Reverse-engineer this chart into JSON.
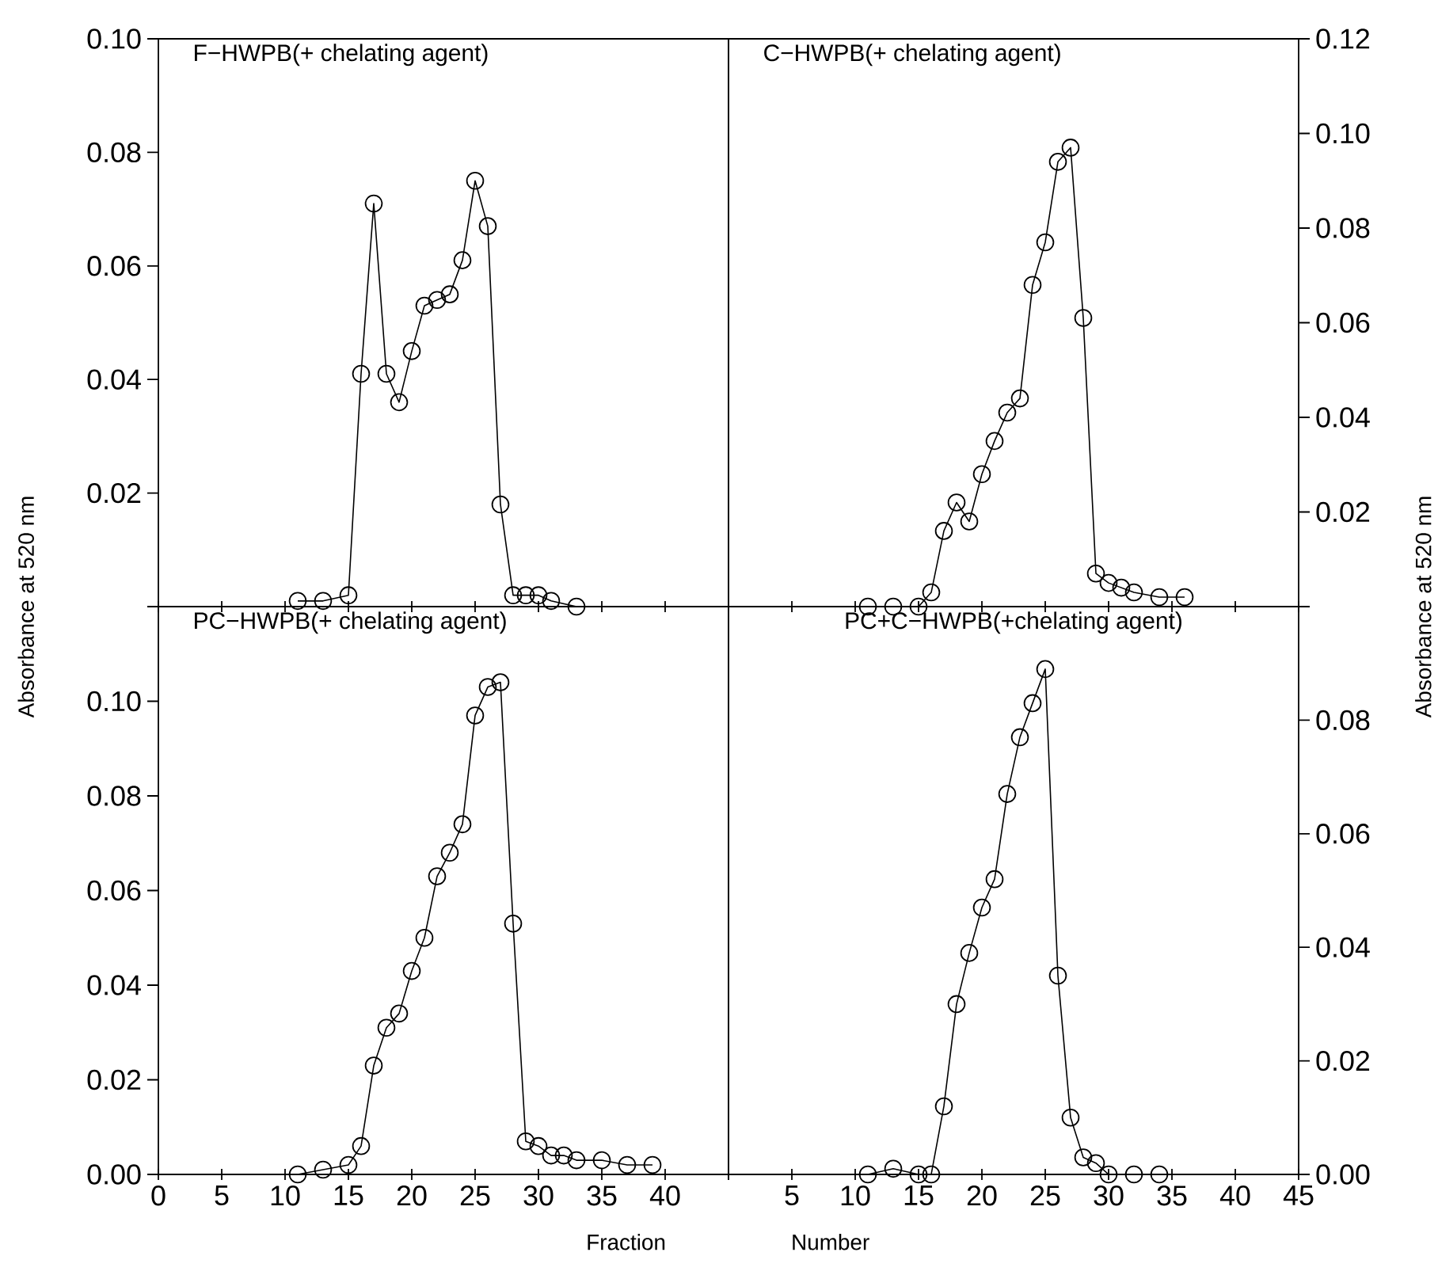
{
  "chart_data": [
    {
      "type": "line",
      "title": "F−HWPB(+ chelating agent)",
      "ylabel": "Absorbance at 520 nm",
      "marker": "circle",
      "tick_labels": "y",
      "xlim": [
        0,
        45
      ],
      "ylim": [
        0,
        0.1
      ],
      "xticks": [
        {
          "value": 0,
          "label": null
        },
        {
          "value": 5,
          "label": null
        },
        {
          "value": 10,
          "label": null
        },
        {
          "value": 15,
          "label": null
        },
        {
          "value": 20,
          "label": null
        },
        {
          "value": 25,
          "label": null
        },
        {
          "value": 30,
          "label": null
        },
        {
          "value": 35,
          "label": null
        },
        {
          "value": 40,
          "label": null
        },
        {
          "value": 45,
          "label": null
        }
      ],
      "yticks": [
        {
          "value": 0,
          "label": null
        },
        {
          "value": 0.02,
          "label": "0.02"
        },
        {
          "value": 0.04,
          "label": "0.04"
        },
        {
          "value": 0.06,
          "label": "0.06"
        },
        {
          "value": 0.08,
          "label": "0.08"
        },
        {
          "value": 0.1,
          "label": "0.10"
        }
      ],
      "series": [
        {
          "color": "#000000",
          "x": [
            11,
            13,
            15,
            16,
            17,
            18,
            19,
            20,
            21,
            22,
            23,
            24,
            25,
            26,
            27,
            28,
            29,
            30,
            31,
            33
          ],
          "values": [
            0.001,
            0.001,
            0.002,
            0.041,
            0.071,
            0.041,
            0.036,
            0.045,
            0.053,
            0.054,
            0.055,
            0.061,
            0.075,
            0.067,
            0.018,
            0.002,
            0.002,
            0.002,
            0.001,
            0.0
          ]
        }
      ]
    },
    {
      "type": "line",
      "title": "C−HWPB(+ chelating agent)",
      "y2label": "Absorbance at 520 nm",
      "marker": "circle",
      "tick_labels": "y",
      "xlim": [
        0,
        45
      ],
      "y2lim": [
        0,
        0.12
      ],
      "xticks": [
        {
          "value": 0,
          "label": null
        },
        {
          "value": 5,
          "label": null
        },
        {
          "value": 10,
          "label": null
        },
        {
          "value": 15,
          "label": null
        },
        {
          "value": 20,
          "label": null
        },
        {
          "value": 25,
          "label": null
        },
        {
          "value": 30,
          "label": null
        },
        {
          "value": 35,
          "label": null
        },
        {
          "value": 40,
          "label": null
        },
        {
          "value": 45,
          "label": null
        }
      ],
      "y2ticks": [
        {
          "value": 0,
          "label": null
        },
        {
          "value": 0.02,
          "label": "0.02"
        },
        {
          "value": 0.04,
          "label": "0.04"
        },
        {
          "value": 0.06,
          "label": "0.06"
        },
        {
          "value": 0.08,
          "label": "0.08"
        },
        {
          "value": 0.1,
          "label": "0.10"
        },
        {
          "value": 0.12,
          "label": "0.12"
        }
      ],
      "series": [
        {
          "color": "#000000",
          "axis": "y2",
          "x": [
            11,
            13,
            15,
            16,
            17,
            18,
            19,
            20,
            21,
            22,
            23,
            24,
            25,
            26,
            27,
            28,
            29,
            30,
            31,
            32,
            34,
            36
          ],
          "values": [
            0.0,
            0.0,
            0.0,
            0.003,
            0.016,
            0.022,
            0.018,
            0.028,
            0.035,
            0.041,
            0.044,
            0.068,
            0.077,
            0.094,
            0.097,
            0.061,
            0.007,
            0.005,
            0.004,
            0.003,
            0.002,
            0.002
          ]
        }
      ]
    },
    {
      "type": "line",
      "title": "PC−HWPB(+ chelating agent)",
      "xlabel": "Fraction",
      "marker": "circle",
      "xlim": [
        0,
        45
      ],
      "ylim": [
        0,
        0.12
      ],
      "xticks": [
        {
          "value": 0,
          "label": "0"
        },
        {
          "value": 5,
          "label": "5"
        },
        {
          "value": 10,
          "label": "10"
        },
        {
          "value": 15,
          "label": "15"
        },
        {
          "value": 20,
          "label": "20"
        },
        {
          "value": 25,
          "label": "25"
        },
        {
          "value": 30,
          "label": "30"
        },
        {
          "value": 35,
          "label": "35"
        },
        {
          "value": 40,
          "label": "40"
        },
        {
          "value": 45,
          "label": null
        }
      ],
      "yticks": [
        {
          "value": 0,
          "label": "0.00"
        },
        {
          "value": 0.02,
          "label": "0.02"
        },
        {
          "value": 0.04,
          "label": "0.04"
        },
        {
          "value": 0.06,
          "label": "0.06"
        },
        {
          "value": 0.08,
          "label": "0.08"
        },
        {
          "value": 0.1,
          "label": "0.10"
        }
      ],
      "series": [
        {
          "color": "#000000",
          "x": [
            11,
            13,
            15,
            16,
            17,
            18,
            19,
            20,
            21,
            22,
            23,
            24,
            25,
            26,
            27,
            28,
            29,
            30,
            31,
            32,
            33,
            35,
            37,
            39
          ],
          "values": [
            0.0,
            0.001,
            0.002,
            0.006,
            0.023,
            0.031,
            0.034,
            0.043,
            0.05,
            0.063,
            0.068,
            0.074,
            0.097,
            0.103,
            0.104,
            0.053,
            0.007,
            0.006,
            0.004,
            0.004,
            0.003,
            0.003,
            0.002,
            0.002
          ]
        }
      ]
    },
    {
      "type": "line",
      "title": "PC+C−HWPB(+chelating agent)",
      "xlabel": "Number",
      "marker": "circle",
      "xlim": [
        0,
        45
      ],
      "y2lim": [
        0,
        0.1
      ],
      "xticks": [
        {
          "value": 0,
          "label": null
        },
        {
          "value": 5,
          "label": "5"
        },
        {
          "value": 10,
          "label": "10"
        },
        {
          "value": 15,
          "label": "15"
        },
        {
          "value": 20,
          "label": "20"
        },
        {
          "value": 25,
          "label": "25"
        },
        {
          "value": 30,
          "label": "30"
        },
        {
          "value": 35,
          "label": "35"
        },
        {
          "value": 40,
          "label": "40"
        },
        {
          "value": 45,
          "label": "45"
        }
      ],
      "y2ticks": [
        {
          "value": 0,
          "label": "0.00"
        },
        {
          "value": 0.02,
          "label": "0.02"
        },
        {
          "value": 0.04,
          "label": "0.04"
        },
        {
          "value": 0.06,
          "label": "0.06"
        },
        {
          "value": 0.08,
          "label": "0.08"
        }
      ],
      "series": [
        {
          "color": "#000000",
          "axis": "y2",
          "x": [
            11,
            13,
            15,
            16,
            17,
            18,
            19,
            20,
            21,
            22,
            23,
            24,
            25,
            26,
            27,
            28,
            29,
            30,
            32,
            34
          ],
          "values": [
            0.0,
            0.001,
            0.0,
            0.0,
            0.012,
            0.03,
            0.039,
            0.047,
            0.052,
            0.067,
            0.077,
            0.083,
            0.089,
            0.035,
            0.01,
            0.003,
            0.002,
            0.0,
            0.0,
            0.0
          ]
        }
      ]
    }
  ]
}
